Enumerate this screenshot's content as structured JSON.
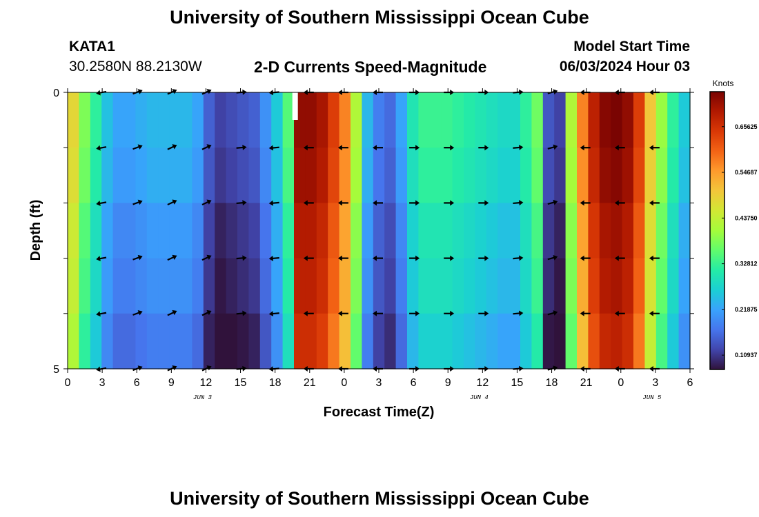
{
  "header": {
    "title": "University of Southern Mississippi Ocean Cube",
    "station_id": "KATA1",
    "coords": "30.2580N  88.2130W",
    "subtitle": "2-D Currents Speed-Magnitude",
    "start_label": "Model Start Time",
    "start_value": "06/03/2024 Hour 03"
  },
  "footer": {
    "title": "University of Southern Mississippi Ocean Cube"
  },
  "colors": {
    "colormap": [
      "#30123b",
      "#4145ab",
      "#4675ed",
      "#39a2fc",
      "#1bcfd4",
      "#24eca6",
      "#61fc6c",
      "#a4fc3b",
      "#d1e834",
      "#f3c63a",
      "#fe9b2d",
      "#f36315",
      "#d93806",
      "#b11901",
      "#7a0402"
    ],
    "missing": "#ffffff",
    "arrow": "#000000"
  },
  "chart_data": {
    "type": "heatmap",
    "title": "2-D Currents Speed-Magnitude",
    "xlabel": "Forecast Time(Z)",
    "ylabel": "Depth (ft)",
    "y_range": [
      0,
      5
    ],
    "y_tick_labels": [
      "0",
      "5"
    ],
    "x_range_hours": [
      0,
      54
    ],
    "x_tick_labels": [
      "0",
      "3",
      "6",
      "9",
      "12",
      "15",
      "18",
      "21",
      "0",
      "3",
      "6",
      "9",
      "12",
      "15",
      "18",
      "21",
      "0",
      "3",
      "6"
    ],
    "date_labels": [
      {
        "text": "JUN 3",
        "hour": 12
      },
      {
        "text": "JUN 4",
        "hour": 36
      },
      {
        "text": "JUN 5",
        "hour": 51
      }
    ],
    "colorbar": {
      "label": "Knots",
      "min": 0.075,
      "max": 0.74,
      "tick_labels": [
        "0.65625",
        "0.54687",
        "0.43750",
        "0.32812",
        "0.21875",
        "0.10937"
      ],
      "tick_values": [
        0.65625,
        0.546875,
        0.4375,
        0.328125,
        0.21875,
        0.109375
      ]
    },
    "depth_layers": 5,
    "time_step_hours": 1,
    "speed_by_hour_knots": [
      0.46,
      0.36,
      0.3,
      0.23,
      0.2,
      0.2,
      0.21,
      0.22,
      0.22,
      0.22,
      0.22,
      0.2,
      0.13,
      0.1,
      0.11,
      0.12,
      0.13,
      0.18,
      0.24,
      0.33,
      0.7,
      0.7,
      0.68,
      0.62,
      0.55,
      0.4,
      0.22,
      0.16,
      0.14,
      0.2,
      0.28,
      0.31,
      0.31,
      0.31,
      0.3,
      0.29,
      0.28,
      0.27,
      0.26,
      0.26,
      0.3,
      0.35,
      0.12,
      0.1,
      0.4,
      0.55,
      0.66,
      0.71,
      0.72,
      0.7,
      0.62,
      0.48,
      0.38,
      0.3,
      0.24
    ],
    "vectors": {
      "hours": [
        3,
        6,
        9,
        12,
        15,
        18,
        21,
        24,
        27,
        30,
        33,
        36,
        39,
        42,
        45,
        48,
        51
      ],
      "depth_rows": [
        1,
        2,
        3,
        4,
        5
      ],
      "direction_deg": [
        190,
        20,
        25,
        25,
        5,
        185,
        180,
        180,
        180,
        0,
        0,
        0,
        5,
        15,
        180,
        180,
        180
      ]
    }
  }
}
